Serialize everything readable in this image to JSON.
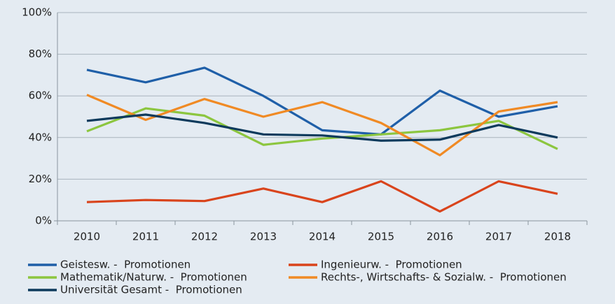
{
  "chart_data": {
    "type": "line",
    "categories": [
      "2010",
      "2011",
      "2012",
      "2013",
      "2014",
      "2015",
      "2016",
      "2017",
      "2018"
    ],
    "series": [
      {
        "name": "Geistesw. -  Promotionen",
        "color": "#1f5fa8",
        "values": [
          72.5,
          66.5,
          73.5,
          60,
          43.5,
          41.5,
          62.5,
          50,
          55
        ]
      },
      {
        "name": "Ingenieurw. -  Promotionen",
        "color": "#d9441c",
        "values": [
          9,
          10,
          9.5,
          15.5,
          9,
          19,
          4.5,
          19,
          13
        ]
      },
      {
        "name": "Mathematik/Naturw. -  Promotionen",
        "color": "#8cc63f",
        "values": [
          43,
          54,
          50.5,
          36.5,
          39.5,
          41.5,
          43.5,
          48,
          34.5
        ]
      },
      {
        "name": "Rechts-, Wirtschafts- & Sozialw. -  Promotionen",
        "color": "#f08a24",
        "values": [
          60.5,
          48.5,
          58.5,
          50,
          57,
          47,
          31.5,
          52.5,
          57
        ]
      },
      {
        "name": "Universität Gesamt -  Promotionen",
        "color": "#0d3a5c",
        "values": [
          48,
          51,
          47,
          41.5,
          41,
          38.5,
          39,
          46,
          40
        ]
      }
    ],
    "ylim": [
      0,
      100
    ],
    "yticks": [
      {
        "value": 0,
        "label": "0%"
      },
      {
        "value": 20,
        "label": "20%"
      },
      {
        "value": 40,
        "label": "40%"
      },
      {
        "value": 60,
        "label": "60%"
      },
      {
        "value": 80,
        "label": "80%"
      },
      {
        "value": 100,
        "label": "100%"
      }
    ],
    "grid": true,
    "legend": "bottom"
  }
}
